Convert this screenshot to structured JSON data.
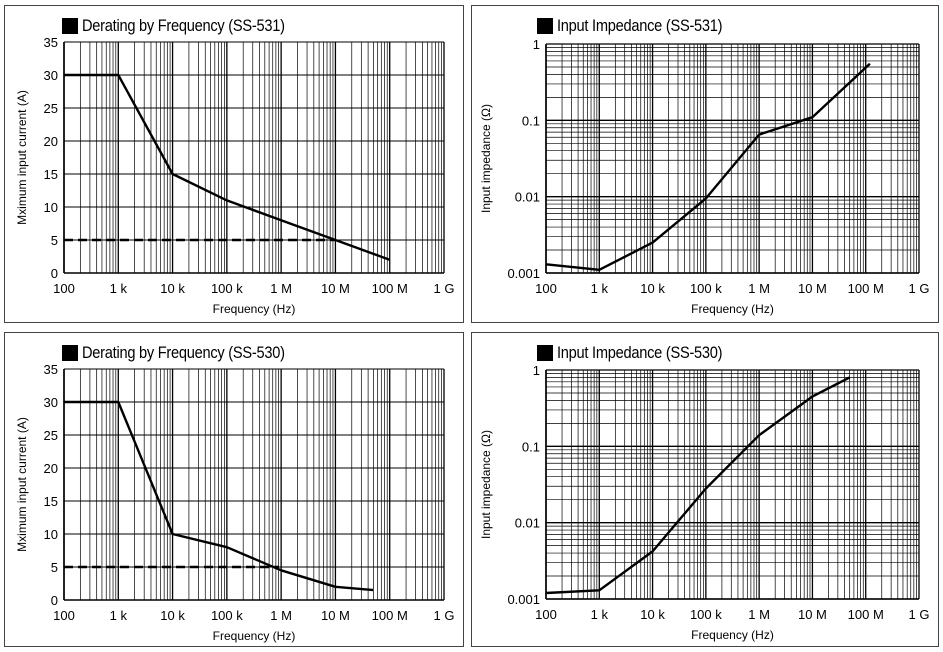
{
  "chart_data": [
    {
      "type": "line",
      "title": "Derating by Frequency (SS-531)",
      "xlabel": "Frequency (Hz)",
      "ylabel": "Mximum input current (A)",
      "x_scale": "log",
      "xlim": [
        100,
        1000000000
      ],
      "ylim": [
        0,
        35
      ],
      "x_ticks": [
        "100",
        "1 k",
        "10 k",
        "100 k",
        "1 M",
        "10 M",
        "100 M",
        "1 G"
      ],
      "y_ticks": [
        "0",
        "5",
        "10",
        "15",
        "20",
        "25",
        "30",
        "35"
      ],
      "grid": true,
      "series": [
        {
          "style": "solid",
          "x": [
            100,
            1000,
            10000,
            100000,
            1000000,
            10000000,
            100000000
          ],
          "y": [
            30,
            30,
            15,
            11,
            8,
            5,
            2
          ]
        },
        {
          "style": "dashed",
          "x": [
            100,
            10000000
          ],
          "y": [
            5,
            5
          ]
        }
      ]
    },
    {
      "type": "line",
      "title": "Input Impedance (SS-531)",
      "xlabel": "Frequency (Hz)",
      "ylabel": "Input impedance (Ω)",
      "x_scale": "log",
      "y_scale": "log",
      "xlim": [
        100,
        1000000000
      ],
      "ylim": [
        0.001,
        1
      ],
      "x_ticks": [
        "100",
        "1 k",
        "10 k",
        "100 k",
        "1 M",
        "10 M",
        "100 M",
        "1 G"
      ],
      "y_ticks": [
        "0.001",
        "0.01",
        "0.1",
        "1"
      ],
      "grid": true,
      "series": [
        {
          "style": "solid",
          "x": [
            100,
            1000,
            10000,
            100000,
            1000000,
            10000000,
            120000000
          ],
          "y": [
            0.0013,
            0.0011,
            0.0025,
            0.0095,
            0.065,
            0.11,
            0.55
          ]
        }
      ]
    },
    {
      "type": "line",
      "title": "Derating by Frequency (SS-530)",
      "xlabel": "Frequency (Hz)",
      "ylabel": "Mximum input current (A)",
      "x_scale": "log",
      "xlim": [
        100,
        1000000000
      ],
      "ylim": [
        0,
        35
      ],
      "x_ticks": [
        "100",
        "1 k",
        "10 k",
        "100 k",
        "1 M",
        "10 M",
        "100 M",
        "1 G"
      ],
      "y_ticks": [
        "0",
        "5",
        "10",
        "15",
        "20",
        "25",
        "30",
        "35"
      ],
      "grid": true,
      "series": [
        {
          "style": "solid",
          "x": [
            100,
            1000,
            10000,
            100000,
            1000000,
            10000000,
            50000000
          ],
          "y": [
            30,
            30,
            10,
            8,
            4.5,
            2,
            1.5
          ]
        },
        {
          "style": "dashed",
          "x": [
            100,
            900000
          ],
          "y": [
            5,
            5
          ]
        }
      ]
    },
    {
      "type": "line",
      "title": "Input Impedance (SS-530)",
      "xlabel": "Frequency (Hz)",
      "ylabel": "Input impedance (Ω)",
      "x_scale": "log",
      "y_scale": "log",
      "xlim": [
        100,
        1000000000
      ],
      "ylim": [
        0.001,
        1
      ],
      "x_ticks": [
        "100",
        "1 k",
        "10 k",
        "100 k",
        "1 M",
        "10 M",
        "100 M",
        "1 G"
      ],
      "y_ticks": [
        "0.001",
        "0.01",
        "0.1",
        "1"
      ],
      "grid": true,
      "series": [
        {
          "style": "solid",
          "x": [
            100,
            1000,
            10000,
            100000,
            1000000,
            10000000,
            50000000
          ],
          "y": [
            0.0012,
            0.0013,
            0.0042,
            0.028,
            0.14,
            0.45,
            0.8
          ]
        }
      ]
    }
  ]
}
